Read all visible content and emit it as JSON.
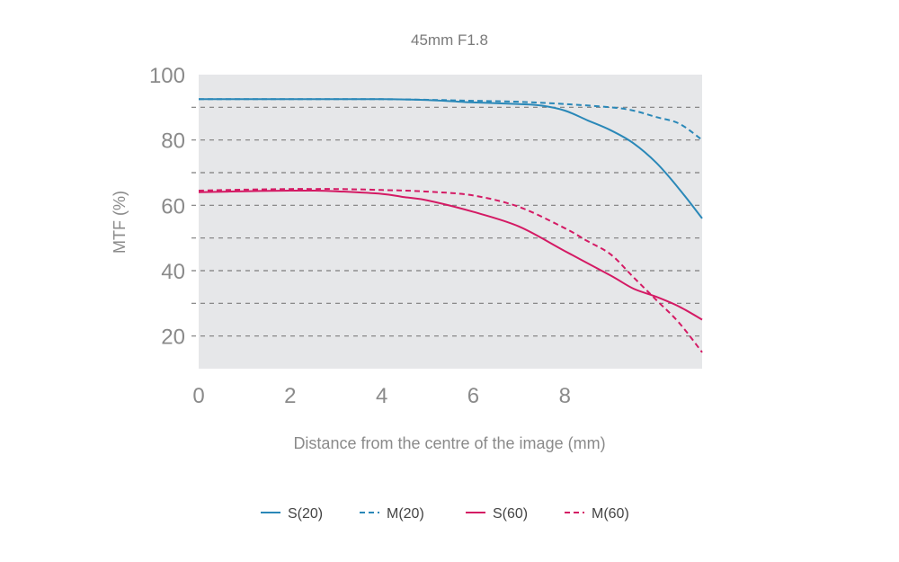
{
  "chart_data": {
    "type": "line",
    "title": "45mm F1.8",
    "xlabel": "Distance from the centre of the image (mm)",
    "ylabel": "MTF (%)",
    "xlim": [
      0,
      11
    ],
    "ylim": [
      10,
      100
    ],
    "x_ticks": [
      0,
      2,
      4,
      6,
      8
    ],
    "y_ticks": [
      20,
      40,
      60,
      80,
      100
    ],
    "grid": "dashed horizontal lines every 10",
    "plot_background": "#e6e7e9",
    "legend_position": "bottom",
    "series": [
      {
        "name": "S(20)",
        "color": "#2a88b8",
        "style": "solid",
        "x": [
          0,
          1,
          2,
          3,
          4,
          5,
          6,
          7,
          7.5,
          8,
          8.5,
          9,
          9.5,
          10,
          10.5,
          11
        ],
        "y": [
          92.5,
          92.5,
          92.5,
          92.5,
          92.5,
          92.2,
          91.5,
          91,
          90.5,
          89,
          86,
          83,
          79,
          73,
          65,
          56
        ]
      },
      {
        "name": "M(20)",
        "color": "#2a88b8",
        "style": "dashed",
        "x": [
          0,
          1,
          2,
          3,
          4,
          5,
          6,
          7,
          8,
          9,
          9.5,
          10,
          10.5,
          11
        ],
        "y": [
          92.5,
          92.5,
          92.5,
          92.5,
          92.5,
          92.3,
          92,
          91.7,
          91,
          90,
          89,
          87,
          85,
          80
        ]
      },
      {
        "name": "S(60)",
        "color": "#d41a64",
        "style": "solid",
        "x": [
          0,
          1,
          2,
          2.5,
          3,
          4,
          4.5,
          5,
          6,
          7,
          8,
          9,
          9.5,
          10,
          10.5,
          11
        ],
        "y": [
          64,
          64.3,
          64.5,
          64.5,
          64.3,
          63.5,
          62.5,
          61.5,
          58,
          53.5,
          46,
          38.5,
          34.5,
          32,
          29,
          25
        ]
      },
      {
        "name": "M(60)",
        "color": "#d41a64",
        "style": "dashed",
        "x": [
          0,
          1,
          2,
          2.5,
          3,
          4,
          5,
          6,
          7,
          8,
          8.5,
          9,
          9.5,
          10,
          10.5,
          11
        ],
        "y": [
          64.5,
          64.8,
          65,
          65,
          65,
          64.7,
          64.2,
          63,
          59.5,
          53,
          49,
          45,
          38,
          31,
          24,
          15
        ]
      }
    ]
  }
}
